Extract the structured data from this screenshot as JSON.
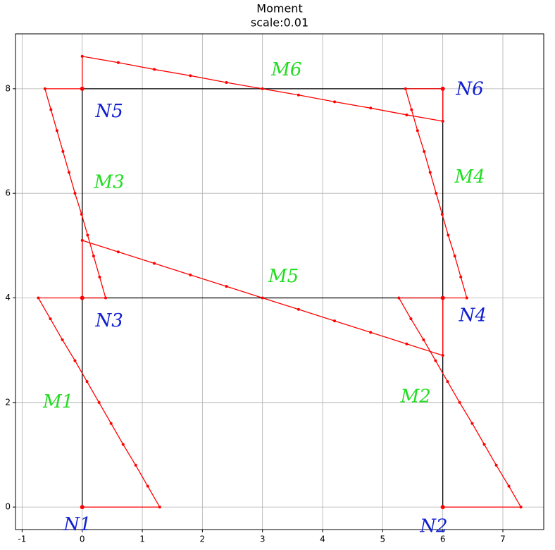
{
  "chart_data": {
    "type": "line",
    "title": "Moment",
    "subtitle": "scale:0.01",
    "xlim": [
      -1.11,
      7.68
    ],
    "ylim": [
      -0.43,
      9.05
    ],
    "xticks": [
      -1,
      0,
      1,
      2,
      3,
      4,
      5,
      6,
      7
    ],
    "yticks": [
      0,
      2,
      4,
      6,
      8
    ],
    "grid": true,
    "series": [
      {
        "color": "#000000",
        "line": true,
        "markers": false,
        "x": [
          0,
          0,
          null,
          6,
          6,
          null,
          0,
          6,
          null,
          0,
          6
        ],
        "values": [
          0,
          8,
          null,
          0,
          8,
          null,
          4,
          4,
          null,
          8,
          8
        ]
      },
      {
        "color": "#ff0000",
        "line": true,
        "markers": true,
        "x": [
          0,
          1.29,
          1.09,
          0.89,
          0.68,
          0.48,
          0.28,
          0.08,
          -0.12,
          -0.33,
          -0.53,
          -0.73,
          0
        ],
        "values": [
          0,
          0,
          0.4,
          0.8,
          1.2,
          1.6,
          2.0,
          2.4,
          2.8,
          3.2,
          3.6,
          4,
          4
        ]
      },
      {
        "color": "#ff0000",
        "line": true,
        "markers": true,
        "x": [
          6,
          7.3,
          7.1,
          6.89,
          6.69,
          6.49,
          6.28,
          6.08,
          5.88,
          5.68,
          5.47,
          5.27,
          6
        ],
        "values": [
          0,
          0,
          0.4,
          0.8,
          1.2,
          1.6,
          2.0,
          2.4,
          2.8,
          3.2,
          3.6,
          4,
          4
        ]
      },
      {
        "color": "#ff0000",
        "line": true,
        "markers": true,
        "x": [
          0,
          0.39,
          0.29,
          0.19,
          0.09,
          -0.01,
          -0.12,
          -0.22,
          -0.32,
          -0.42,
          -0.52,
          -0.62,
          0
        ],
        "values": [
          4,
          4,
          4.4,
          4.8,
          5.2,
          5.6,
          6.0,
          6.4,
          6.8,
          7.2,
          7.6,
          8,
          8
        ]
      },
      {
        "color": "#ff0000",
        "line": true,
        "markers": true,
        "x": [
          6,
          6.4,
          6.3,
          6.2,
          6.09,
          5.99,
          5.89,
          5.79,
          5.69,
          5.58,
          5.48,
          5.38,
          6
        ],
        "values": [
          4,
          4,
          4.4,
          4.8,
          5.2,
          5.6,
          6.0,
          6.4,
          6.8,
          7.2,
          7.6,
          8,
          8
        ]
      },
      {
        "color": "#ff0000",
        "line": true,
        "markers": true,
        "x": [
          0,
          0,
          0.6,
          1.2,
          1.8,
          2.4,
          3.0,
          3.6,
          4.2,
          4.8,
          5.4,
          6,
          6
        ],
        "values": [
          4,
          5.1,
          4.88,
          4.66,
          4.44,
          4.22,
          4.0,
          3.78,
          3.56,
          3.34,
          3.12,
          2.9,
          4
        ]
      },
      {
        "color": "#ff0000",
        "line": true,
        "markers": true,
        "x": [
          0,
          0,
          0.6,
          1.2,
          1.8,
          2.4,
          3.0,
          3.6,
          4.2,
          4.8,
          5.4,
          6,
          6
        ],
        "values": [
          8,
          8.62,
          8.5,
          8.37,
          8.25,
          8.12,
          8.0,
          7.88,
          7.75,
          7.63,
          7.5,
          7.38,
          8
        ]
      },
      {
        "color": "#ff0000",
        "line": false,
        "markers": true,
        "x": [
          0,
          6,
          0,
          6,
          0,
          6
        ],
        "values": [
          0,
          0,
          4,
          4,
          8,
          8
        ]
      }
    ],
    "annotations": [
      {
        "text": "N1",
        "x": -0.08,
        "y": -0.35,
        "color": "#1020d0"
      },
      {
        "text": "N2",
        "x": 5.85,
        "y": -0.38,
        "color": "#1020d0"
      },
      {
        "text": "N3",
        "x": 0.45,
        "y": 3.55,
        "color": "#1020d0"
      },
      {
        "text": "N4",
        "x": 6.5,
        "y": 3.65,
        "color": "#1020d0"
      },
      {
        "text": "N5",
        "x": 0.45,
        "y": 7.55,
        "color": "#1020d0"
      },
      {
        "text": "N6",
        "x": 6.45,
        "y": 7.98,
        "color": "#1020d0"
      },
      {
        "text": "M1",
        "x": -0.4,
        "y": 2.0,
        "color": "#22dd22"
      },
      {
        "text": "M2",
        "x": 5.55,
        "y": 2.1,
        "color": "#22dd22"
      },
      {
        "text": "M3",
        "x": 0.45,
        "y": 6.2,
        "color": "#22dd22"
      },
      {
        "text": "M4",
        "x": 6.45,
        "y": 6.3,
        "color": "#22dd22"
      },
      {
        "text": "M5",
        "x": 3.35,
        "y": 4.4,
        "color": "#22dd22"
      },
      {
        "text": "M6",
        "x": 3.4,
        "y": 8.35,
        "color": "#22dd22"
      }
    ]
  }
}
